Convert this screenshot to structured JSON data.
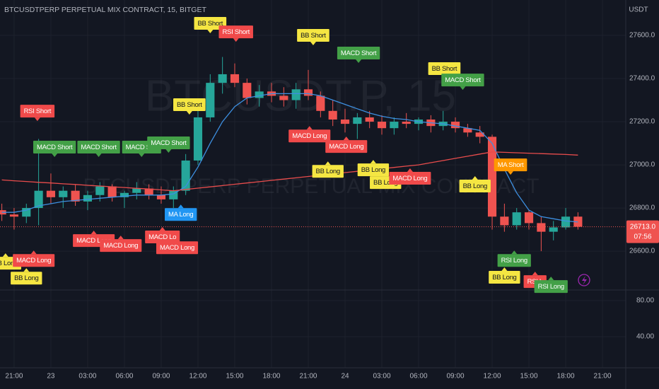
{
  "chart_data": {
    "type": "candlestick",
    "title": "BTCUSDTPERP PERPETUAL MIX CONTRACT, 15, BITGET",
    "currency": "USDT",
    "watermark": "BTCUSDT.P, 15",
    "watermark_subtitle": "BTCUSDTPERP PERPETUAL MIX CONTRACT",
    "background": "#131722",
    "grid": true,
    "up_color": "#26a69a",
    "down_color": "#ef5350",
    "xlim": [
      -1.15,
      49.9
    ],
    "xticks": [
      {
        "value": 0,
        "label": "21:00"
      },
      {
        "value": 3,
        "label": "23"
      },
      {
        "value": 6,
        "label": "03:00"
      },
      {
        "value": 9,
        "label": "06:00"
      },
      {
        "value": 12,
        "label": "09:00"
      },
      {
        "value": 15,
        "label": "12:00"
      },
      {
        "value": 18,
        "label": "15:00"
      },
      {
        "value": 21,
        "label": "18:00"
      },
      {
        "value": 24,
        "label": "21:00"
      },
      {
        "value": 27,
        "label": "24"
      },
      {
        "value": 30,
        "label": "03:00"
      },
      {
        "value": 33,
        "label": "06:00"
      },
      {
        "value": 36,
        "label": "09:00"
      },
      {
        "value": 39,
        "label": "12:00"
      },
      {
        "value": 42,
        "label": "15:00"
      },
      {
        "value": 45,
        "label": "18:00"
      },
      {
        "value": 48,
        "label": "21:00"
      }
    ],
    "ylim": [
      26420,
      27764
    ],
    "yticks": [
      {
        "value": 26600,
        "label": "26600.0"
      },
      {
        "value": 26800,
        "label": "26800.0"
      },
      {
        "value": 27000,
        "label": "27000.0"
      },
      {
        "value": 27200,
        "label": "27200.0"
      },
      {
        "value": 27400,
        "label": "27400.0"
      },
      {
        "value": 27600,
        "label": "27600.0"
      }
    ],
    "x": [
      -1,
      0,
      1,
      2,
      3,
      4,
      5,
      6,
      7,
      8,
      9,
      10,
      11,
      12,
      13,
      14,
      15,
      16,
      17,
      18,
      19,
      20,
      21,
      22,
      23,
      24,
      25,
      26,
      27,
      28,
      29,
      30,
      31,
      32,
      33,
      34,
      35,
      36,
      37,
      38,
      39,
      40,
      41,
      42,
      43,
      44,
      45,
      46
    ],
    "open": [
      26790,
      26770,
      26760,
      26800,
      26880,
      26850,
      26880,
      26830,
      26860,
      26900,
      26850,
      26870,
      26890,
      26860,
      26840,
      26880,
      27020,
      27220,
      27380,
      27420,
      27380,
      27310,
      27340,
      27320,
      27300,
      27350,
      27320,
      27250,
      27210,
      27190,
      27220,
      27200,
      27170,
      27200,
      27190,
      27210,
      27180,
      27200,
      27170,
      27150,
      27130,
      26760,
      26720,
      26780,
      26730,
      26690,
      26710,
      26760
    ],
    "high": [
      26820,
      26800,
      26820,
      27120,
      26960,
      26900,
      26910,
      26880,
      26920,
      26910,
      26880,
      26920,
      26910,
      26900,
      26900,
      27050,
      27250,
      27420,
      27500,
      27470,
      27400,
      27370,
      27380,
      27360,
      27380,
      27440,
      27340,
      27300,
      27260,
      27240,
      27250,
      27230,
      27220,
      27240,
      27220,
      27230,
      27250,
      27220,
      27190,
      27180,
      27140,
      26820,
      26800,
      26790,
      26760,
      26740,
      26800,
      26780
    ],
    "low": [
      26740,
      26700,
      26730,
      26720,
      26820,
      26800,
      26810,
      26790,
      26830,
      26830,
      26800,
      26840,
      26840,
      26820,
      26800,
      26860,
      27000,
      27200,
      27330,
      27360,
      27280,
      27270,
      27290,
      27270,
      27260,
      27300,
      27220,
      27180,
      27150,
      27120,
      27170,
      27140,
      27140,
      27170,
      27160,
      27150,
      27160,
      27150,
      27130,
      27100,
      26700,
      26690,
      26700,
      26700,
      26600,
      26650,
      26700,
      26700
    ],
    "close": [
      26770,
      26760,
      26800,
      26880,
      26850,
      26880,
      26830,
      26860,
      26900,
      26850,
      26870,
      26890,
      26860,
      26840,
      26880,
      27020,
      27220,
      27380,
      27420,
      27380,
      27310,
      27340,
      27320,
      27300,
      27350,
      27320,
      27250,
      27210,
      27190,
      27220,
      27200,
      27170,
      27200,
      27190,
      27210,
      27180,
      27200,
      27170,
      27150,
      27130,
      26760,
      26720,
      26780,
      26730,
      26690,
      26710,
      26760,
      26713
    ],
    "ma_lines": [
      {
        "color": "#3d8fe0",
        "values": [
          26780,
          26780,
          26790,
          26810,
          26820,
          26830,
          26835,
          26840,
          26845,
          26850,
          26855,
          26860,
          26860,
          26860,
          26865,
          26900,
          26990,
          27100,
          27200,
          27270,
          27310,
          27320,
          27330,
          27330,
          27330,
          27330,
          27320,
          27300,
          27280,
          27260,
          27240,
          27225,
          27215,
          27210,
          27200,
          27195,
          27190,
          27180,
          27170,
          27160,
          27100,
          26980,
          26870,
          26790,
          26760,
          26750,
          26740,
          26735
        ]
      },
      {
        "color": "#e84c4c",
        "values": [
          26930,
          26926,
          26923,
          26919,
          26916,
          26912,
          26909,
          26905,
          26902,
          26898,
          26895,
          26891,
          26888,
          26884,
          26880,
          26886,
          26892,
          26898,
          26904,
          26910,
          26916,
          26922,
          26928,
          26934,
          26940,
          26946,
          26952,
          26958,
          26964,
          26970,
          26976,
          26982,
          26988,
          26994,
          27000,
          27010,
          27020,
          27030,
          27040,
          27050,
          27060,
          27058,
          27056,
          27054,
          27052,
          27050,
          27048,
          27045
        ]
      }
    ],
    "last_price": {
      "value": 26713,
      "label": "26713.0"
    },
    "countdown": "07:56",
    "lower_panel": {
      "ylim": [
        5.5,
        90.2
      ],
      "yticks": [
        {
          "value": 80,
          "label": "80.00"
        },
        {
          "value": 40,
          "label": "40.00"
        }
      ]
    },
    "annotations": [
      {
        "text": "BB Short",
        "x": 16.0,
        "y": 27656,
        "color": "#f5e642",
        "text_color": "#131722",
        "pointer": "down"
      },
      {
        "text": "RSI Short",
        "x": 18.1,
        "y": 27616,
        "color": "#f04a4a",
        "text_color": "#ffffff",
        "pointer": "down"
      },
      {
        "text": "BB Short",
        "x": 24.4,
        "y": 27600,
        "color": "#f5e642",
        "text_color": "#131722",
        "pointer": "down"
      },
      {
        "text": "MACD Short",
        "x": 28.1,
        "y": 27518,
        "color": "#43a047",
        "text_color": "#ffffff",
        "pointer": "down"
      },
      {
        "text": "BB Short",
        "x": 35.1,
        "y": 27446,
        "color": "#f5e642",
        "text_color": "#131722",
        "pointer": "down"
      },
      {
        "text": "MACD Short",
        "x": 36.6,
        "y": 27393,
        "color": "#43a047",
        "text_color": "#ffffff",
        "pointer": "down"
      },
      {
        "text": "RSI Short",
        "x": 1.9,
        "y": 27249,
        "color": "#f04a4a",
        "text_color": "#ffffff",
        "pointer": "down"
      },
      {
        "text": "BB Short",
        "x": 14.3,
        "y": 27279,
        "color": "#f5e642",
        "text_color": "#131722",
        "pointer": "down"
      },
      {
        "text": "MACD Short",
        "x": 3.3,
        "y": 27082,
        "color": "#43a047",
        "text_color": "#ffffff",
        "pointer": "down"
      },
      {
        "text": "MACD Short",
        "x": 6.9,
        "y": 27082,
        "color": "#43a047",
        "text_color": "#ffffff",
        "pointer": "down"
      },
      {
        "text": "MACD Sho",
        "x": 10.4,
        "y": 27082,
        "color": "#43a047",
        "text_color": "#ffffff",
        "pointer": "down"
      },
      {
        "text": "MACD Short",
        "x": 12.6,
        "y": 27102,
        "color": "#43a047",
        "text_color": "#ffffff",
        "pointer": "down"
      },
      {
        "text": "MACD Long",
        "x": 24.1,
        "y": 27134,
        "color": "#f04a4a",
        "text_color": "#ffffff",
        "pointer": "up"
      },
      {
        "text": "MACD Long",
        "x": 27.1,
        "y": 27085,
        "color": "#f04a4a",
        "text_color": "#ffffff",
        "pointer": "up"
      },
      {
        "text": "BB Long",
        "x": 25.6,
        "y": 26970,
        "color": "#f5e642",
        "text_color": "#131722",
        "pointer": "up"
      },
      {
        "text": "BB Long",
        "x": 29.3,
        "y": 26977,
        "color": "#f5e642",
        "text_color": "#131722",
        "pointer": "up"
      },
      {
        "text": "BB Long",
        "x": 30.3,
        "y": 26918,
        "color": "#f5e642",
        "text_color": "#131722",
        "pointer": "up"
      },
      {
        "text": "MACD Long",
        "x": 32.3,
        "y": 26938,
        "color": "#f04a4a",
        "text_color": "#ffffff",
        "pointer": "up"
      },
      {
        "text": "BB Long",
        "x": 37.6,
        "y": 26902,
        "color": "#f5e642",
        "text_color": "#131722",
        "pointer": "up"
      },
      {
        "text": "MA Short",
        "x": 40.5,
        "y": 27000,
        "color": "#ff9800",
        "text_color": "#ffffff",
        "pointer": "down"
      },
      {
        "text": "MA Long",
        "x": 13.6,
        "y": 26770,
        "color": "#2196f3",
        "text_color": "#ffffff",
        "pointer": "up"
      },
      {
        "text": "MACD Long",
        "x": 6.5,
        "y": 26649,
        "color": "#f04a4a",
        "text_color": "#ffffff",
        "pointer": "up"
      },
      {
        "text": "MACD Long",
        "x": 8.7,
        "y": 26626,
        "color": "#f04a4a",
        "text_color": "#ffffff",
        "pointer": "up"
      },
      {
        "text": "MACD Lo",
        "x": 12.1,
        "y": 26666,
        "color": "#f04a4a",
        "text_color": "#ffffff",
        "pointer": "up"
      },
      {
        "text": "MACD Long",
        "x": 13.3,
        "y": 26616,
        "color": "#f04a4a",
        "text_color": "#ffffff",
        "pointer": "up"
      },
      {
        "text": "BB Long",
        "x": -0.7,
        "y": 26544,
        "color": "#f5e642",
        "text_color": "#131722",
        "pointer": "up"
      },
      {
        "text": "MACD Long",
        "x": 1.6,
        "y": 26557,
        "color": "#f04a4a",
        "text_color": "#ffffff",
        "pointer": "up"
      },
      {
        "text": "BB Long",
        "x": 1.0,
        "y": 26475,
        "color": "#f5e642",
        "text_color": "#131722",
        "pointer": "up"
      },
      {
        "text": "RSI Long",
        "x": 40.8,
        "y": 26557,
        "color": "#43a047",
        "text_color": "#ffffff",
        "pointer": "up"
      },
      {
        "text": "BB Long",
        "x": 40.0,
        "y": 26479,
        "color": "#f5e642",
        "text_color": "#131722",
        "pointer": "up"
      },
      {
        "text": "RSI L",
        "x": 42.5,
        "y": 26459,
        "color": "#f04a4a",
        "text_color": "#ffffff",
        "pointer": "up"
      },
      {
        "text": "RSI Long",
        "x": 43.8,
        "y": 26436,
        "color": "#43a047",
        "text_color": "#ffffff",
        "pointer": "up"
      }
    ]
  }
}
